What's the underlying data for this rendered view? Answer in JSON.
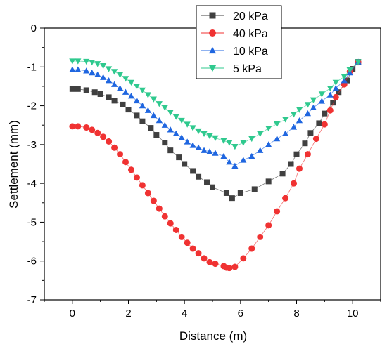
{
  "chart_data": {
    "type": "line",
    "xlabel": "Distance (m)",
    "ylabel": "Settlement (mm)",
    "xlim": [
      -1,
      11
    ],
    "ylim": [
      -7,
      0
    ],
    "xticks": [
      0,
      2,
      4,
      6,
      8,
      10
    ],
    "yticks": [
      0,
      -1,
      -2,
      -3,
      -4,
      -5,
      -6,
      -7
    ],
    "legend_position": "top-center",
    "grid": false,
    "series": [
      {
        "name": "20 kPa",
        "color": "#404040",
        "marker": "square",
        "x": [
          0,
          0.2,
          0.5,
          0.8,
          1.0,
          1.3,
          1.5,
          1.8,
          2.0,
          2.3,
          2.5,
          2.8,
          3.0,
          3.3,
          3.5,
          3.8,
          4.0,
          4.3,
          4.5,
          4.8,
          5.0,
          5.5,
          5.7,
          6.0,
          6.5,
          7.0,
          7.5,
          7.8,
          8.0,
          8.3,
          8.5,
          8.8,
          9.0,
          9.3,
          9.5,
          9.8,
          10.0,
          10.2
        ],
        "y": [
          -1.57,
          -1.57,
          -1.6,
          -1.65,
          -1.7,
          -1.78,
          -1.87,
          -1.97,
          -2.1,
          -2.25,
          -2.4,
          -2.57,
          -2.75,
          -2.95,
          -3.15,
          -3.33,
          -3.5,
          -3.68,
          -3.83,
          -3.97,
          -4.1,
          -4.25,
          -4.38,
          -4.25,
          -4.15,
          -3.95,
          -3.75,
          -3.5,
          -3.25,
          -2.97,
          -2.7,
          -2.45,
          -2.2,
          -1.92,
          -1.65,
          -1.35,
          -1.05,
          -0.87
        ]
      },
      {
        "name": "40 kPa",
        "color": "#f03232",
        "marker": "circle",
        "x": [
          0,
          0.2,
          0.5,
          0.7,
          0.9,
          1.1,
          1.3,
          1.5,
          1.7,
          1.9,
          2.1,
          2.3,
          2.5,
          2.7,
          2.9,
          3.1,
          3.3,
          3.5,
          3.7,
          3.9,
          4.1,
          4.3,
          4.5,
          4.7,
          4.9,
          5.1,
          5.4,
          5.5,
          5.6,
          5.8,
          6.1,
          6.4,
          6.7,
          7.0,
          7.3,
          7.6,
          7.9,
          8.1,
          8.4,
          8.7,
          9.0,
          9.2,
          9.4,
          9.7,
          9.9,
          10.2
        ],
        "y": [
          -2.53,
          -2.53,
          -2.56,
          -2.62,
          -2.7,
          -2.8,
          -2.92,
          -3.08,
          -3.25,
          -3.45,
          -3.65,
          -3.85,
          -4.05,
          -4.25,
          -4.45,
          -4.65,
          -4.85,
          -5.03,
          -5.2,
          -5.38,
          -5.53,
          -5.68,
          -5.8,
          -5.93,
          -6.03,
          -6.07,
          -6.13,
          -6.17,
          -6.18,
          -6.15,
          -5.93,
          -5.68,
          -5.38,
          -5.08,
          -4.72,
          -4.38,
          -4.0,
          -3.62,
          -3.25,
          -2.85,
          -2.48,
          -2.12,
          -1.78,
          -1.45,
          -1.12,
          -0.88
        ]
      },
      {
        "name": "10 kPa",
        "color": "#1f66e0",
        "marker": "triangle-up",
        "x": [
          0,
          0.2,
          0.5,
          0.7,
          0.9,
          1.1,
          1.3,
          1.5,
          1.7,
          1.9,
          2.1,
          2.3,
          2.5,
          2.7,
          2.9,
          3.1,
          3.3,
          3.5,
          3.7,
          3.9,
          4.1,
          4.3,
          4.5,
          4.7,
          4.9,
          5.1,
          5.4,
          5.6,
          5.8,
          6.1,
          6.4,
          6.7,
          7.0,
          7.3,
          7.6,
          7.9,
          8.1,
          8.4,
          8.6,
          8.9,
          9.2,
          9.4,
          9.7,
          9.9,
          10.2
        ],
        "y": [
          -1.07,
          -1.07,
          -1.1,
          -1.15,
          -1.2,
          -1.27,
          -1.35,
          -1.45,
          -1.55,
          -1.65,
          -1.75,
          -1.87,
          -2.0,
          -2.12,
          -2.25,
          -2.38,
          -2.5,
          -2.62,
          -2.72,
          -2.82,
          -2.93,
          -3.02,
          -3.08,
          -3.15,
          -3.18,
          -3.22,
          -3.3,
          -3.45,
          -3.55,
          -3.4,
          -3.3,
          -3.15,
          -3.0,
          -2.85,
          -2.72,
          -2.55,
          -2.38,
          -2.2,
          -2.05,
          -1.88,
          -1.72,
          -1.55,
          -1.35,
          -1.15,
          -0.87
        ]
      },
      {
        "name": "5 kPa",
        "color": "#2fc98e",
        "marker": "triangle-down",
        "x": [
          0,
          0.2,
          0.5,
          0.7,
          0.9,
          1.1,
          1.3,
          1.5,
          1.7,
          1.9,
          2.1,
          2.3,
          2.5,
          2.7,
          2.9,
          3.1,
          3.3,
          3.5,
          3.7,
          3.9,
          4.1,
          4.3,
          4.5,
          4.7,
          4.9,
          5.1,
          5.4,
          5.6,
          5.8,
          6.1,
          6.4,
          6.7,
          7.0,
          7.3,
          7.6,
          7.9,
          8.1,
          8.4,
          8.6,
          8.9,
          9.2,
          9.4,
          9.7,
          9.9,
          10.2
        ],
        "y": [
          -0.85,
          -0.85,
          -0.86,
          -0.88,
          -0.92,
          -0.97,
          -1.05,
          -1.12,
          -1.2,
          -1.3,
          -1.4,
          -1.5,
          -1.6,
          -1.72,
          -1.83,
          -1.95,
          -2.05,
          -2.17,
          -2.28,
          -2.38,
          -2.48,
          -2.57,
          -2.65,
          -2.72,
          -2.78,
          -2.83,
          -2.9,
          -2.95,
          -3.05,
          -2.95,
          -2.85,
          -2.72,
          -2.58,
          -2.47,
          -2.35,
          -2.22,
          -2.1,
          -1.97,
          -1.85,
          -1.7,
          -1.55,
          -1.4,
          -1.25,
          -1.08,
          -0.87
        ]
      }
    ]
  }
}
